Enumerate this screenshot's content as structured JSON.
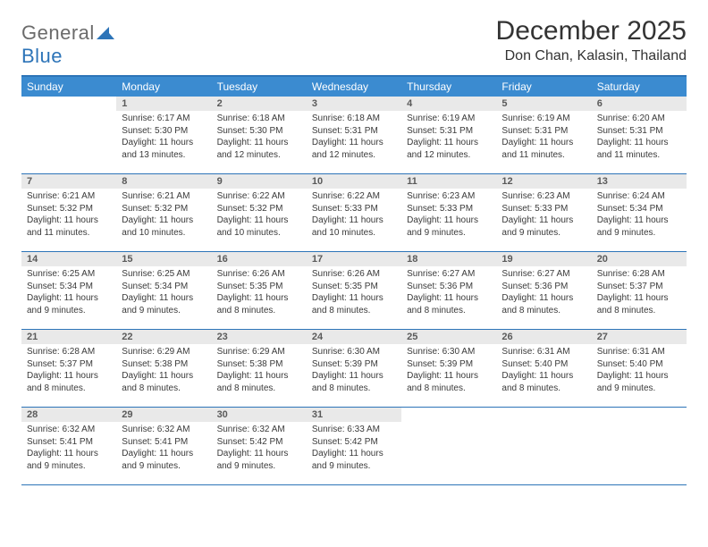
{
  "logo": {
    "text1": "General",
    "text2": "Blue"
  },
  "header": {
    "title": "December 2025",
    "location": "Don Chan, Kalasin, Thailand"
  },
  "colors": {
    "brand_blue": "#3b8bd0",
    "rule_blue": "#2d74b8",
    "daynum_bg": "#e9e9e9",
    "text": "#3a3a3a",
    "logo_gray": "#6b6b6b"
  },
  "weekdays": [
    "Sunday",
    "Monday",
    "Tuesday",
    "Wednesday",
    "Thursday",
    "Friday",
    "Saturday"
  ],
  "weeks": [
    [
      {
        "n": "",
        "sr": "",
        "ss": "",
        "dl": ""
      },
      {
        "n": "1",
        "sr": "Sunrise: 6:17 AM",
        "ss": "Sunset: 5:30 PM",
        "dl": "Daylight: 11 hours and 13 minutes."
      },
      {
        "n": "2",
        "sr": "Sunrise: 6:18 AM",
        "ss": "Sunset: 5:30 PM",
        "dl": "Daylight: 11 hours and 12 minutes."
      },
      {
        "n": "3",
        "sr": "Sunrise: 6:18 AM",
        "ss": "Sunset: 5:31 PM",
        "dl": "Daylight: 11 hours and 12 minutes."
      },
      {
        "n": "4",
        "sr": "Sunrise: 6:19 AM",
        "ss": "Sunset: 5:31 PM",
        "dl": "Daylight: 11 hours and 12 minutes."
      },
      {
        "n": "5",
        "sr": "Sunrise: 6:19 AM",
        "ss": "Sunset: 5:31 PM",
        "dl": "Daylight: 11 hours and 11 minutes."
      },
      {
        "n": "6",
        "sr": "Sunrise: 6:20 AM",
        "ss": "Sunset: 5:31 PM",
        "dl": "Daylight: 11 hours and 11 minutes."
      }
    ],
    [
      {
        "n": "7",
        "sr": "Sunrise: 6:21 AM",
        "ss": "Sunset: 5:32 PM",
        "dl": "Daylight: 11 hours and 11 minutes."
      },
      {
        "n": "8",
        "sr": "Sunrise: 6:21 AM",
        "ss": "Sunset: 5:32 PM",
        "dl": "Daylight: 11 hours and 10 minutes."
      },
      {
        "n": "9",
        "sr": "Sunrise: 6:22 AM",
        "ss": "Sunset: 5:32 PM",
        "dl": "Daylight: 11 hours and 10 minutes."
      },
      {
        "n": "10",
        "sr": "Sunrise: 6:22 AM",
        "ss": "Sunset: 5:33 PM",
        "dl": "Daylight: 11 hours and 10 minutes."
      },
      {
        "n": "11",
        "sr": "Sunrise: 6:23 AM",
        "ss": "Sunset: 5:33 PM",
        "dl": "Daylight: 11 hours and 9 minutes."
      },
      {
        "n": "12",
        "sr": "Sunrise: 6:23 AM",
        "ss": "Sunset: 5:33 PM",
        "dl": "Daylight: 11 hours and 9 minutes."
      },
      {
        "n": "13",
        "sr": "Sunrise: 6:24 AM",
        "ss": "Sunset: 5:34 PM",
        "dl": "Daylight: 11 hours and 9 minutes."
      }
    ],
    [
      {
        "n": "14",
        "sr": "Sunrise: 6:25 AM",
        "ss": "Sunset: 5:34 PM",
        "dl": "Daylight: 11 hours and 9 minutes."
      },
      {
        "n": "15",
        "sr": "Sunrise: 6:25 AM",
        "ss": "Sunset: 5:34 PM",
        "dl": "Daylight: 11 hours and 9 minutes."
      },
      {
        "n": "16",
        "sr": "Sunrise: 6:26 AM",
        "ss": "Sunset: 5:35 PM",
        "dl": "Daylight: 11 hours and 8 minutes."
      },
      {
        "n": "17",
        "sr": "Sunrise: 6:26 AM",
        "ss": "Sunset: 5:35 PM",
        "dl": "Daylight: 11 hours and 8 minutes."
      },
      {
        "n": "18",
        "sr": "Sunrise: 6:27 AM",
        "ss": "Sunset: 5:36 PM",
        "dl": "Daylight: 11 hours and 8 minutes."
      },
      {
        "n": "19",
        "sr": "Sunrise: 6:27 AM",
        "ss": "Sunset: 5:36 PM",
        "dl": "Daylight: 11 hours and 8 minutes."
      },
      {
        "n": "20",
        "sr": "Sunrise: 6:28 AM",
        "ss": "Sunset: 5:37 PM",
        "dl": "Daylight: 11 hours and 8 minutes."
      }
    ],
    [
      {
        "n": "21",
        "sr": "Sunrise: 6:28 AM",
        "ss": "Sunset: 5:37 PM",
        "dl": "Daylight: 11 hours and 8 minutes."
      },
      {
        "n": "22",
        "sr": "Sunrise: 6:29 AM",
        "ss": "Sunset: 5:38 PM",
        "dl": "Daylight: 11 hours and 8 minutes."
      },
      {
        "n": "23",
        "sr": "Sunrise: 6:29 AM",
        "ss": "Sunset: 5:38 PM",
        "dl": "Daylight: 11 hours and 8 minutes."
      },
      {
        "n": "24",
        "sr": "Sunrise: 6:30 AM",
        "ss": "Sunset: 5:39 PM",
        "dl": "Daylight: 11 hours and 8 minutes."
      },
      {
        "n": "25",
        "sr": "Sunrise: 6:30 AM",
        "ss": "Sunset: 5:39 PM",
        "dl": "Daylight: 11 hours and 8 minutes."
      },
      {
        "n": "26",
        "sr": "Sunrise: 6:31 AM",
        "ss": "Sunset: 5:40 PM",
        "dl": "Daylight: 11 hours and 8 minutes."
      },
      {
        "n": "27",
        "sr": "Sunrise: 6:31 AM",
        "ss": "Sunset: 5:40 PM",
        "dl": "Daylight: 11 hours and 9 minutes."
      }
    ],
    [
      {
        "n": "28",
        "sr": "Sunrise: 6:32 AM",
        "ss": "Sunset: 5:41 PM",
        "dl": "Daylight: 11 hours and 9 minutes."
      },
      {
        "n": "29",
        "sr": "Sunrise: 6:32 AM",
        "ss": "Sunset: 5:41 PM",
        "dl": "Daylight: 11 hours and 9 minutes."
      },
      {
        "n": "30",
        "sr": "Sunrise: 6:32 AM",
        "ss": "Sunset: 5:42 PM",
        "dl": "Daylight: 11 hours and 9 minutes."
      },
      {
        "n": "31",
        "sr": "Sunrise: 6:33 AM",
        "ss": "Sunset: 5:42 PM",
        "dl": "Daylight: 11 hours and 9 minutes."
      },
      {
        "n": "",
        "sr": "",
        "ss": "",
        "dl": ""
      },
      {
        "n": "",
        "sr": "",
        "ss": "",
        "dl": ""
      },
      {
        "n": "",
        "sr": "",
        "ss": "",
        "dl": ""
      }
    ]
  ]
}
